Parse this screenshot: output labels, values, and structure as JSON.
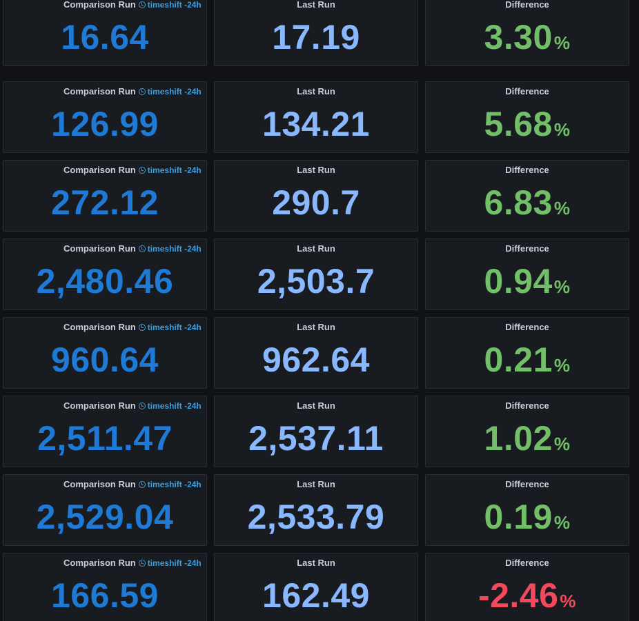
{
  "labels": {
    "comparison": "Comparison Run",
    "timeshift": "timeshift -24h",
    "last": "Last Run",
    "difference": "Difference",
    "percent_unit": "%"
  },
  "colors": {
    "comparison_value": "#1f7ad6",
    "last_value": "#8ab8ff",
    "positive_diff": "#73bf69",
    "negative_diff": "#f2495c",
    "timeshift": "#3d9fe0",
    "panel_bg": "#181b1f",
    "page_bg": "#111217"
  },
  "icons": {
    "timeshift": "clock-icon"
  },
  "rows": [
    {
      "comparison": "16.64",
      "last": "17.19",
      "difference": "3.30",
      "trend": "positive"
    },
    {
      "comparison": "126.99",
      "last": "134.21",
      "difference": "5.68",
      "trend": "positive"
    },
    {
      "comparison": "272.12",
      "last": "290.7",
      "difference": "6.83",
      "trend": "positive"
    },
    {
      "comparison": "2,480.46",
      "last": "2,503.7",
      "difference": "0.94",
      "trend": "positive"
    },
    {
      "comparison": "960.64",
      "last": "962.64",
      "difference": "0.21",
      "trend": "positive"
    },
    {
      "comparison": "2,511.47",
      "last": "2,537.11",
      "difference": "1.02",
      "trend": "positive"
    },
    {
      "comparison": "2,529.04",
      "last": "2,533.79",
      "difference": "0.19",
      "trend": "positive"
    },
    {
      "comparison": "166.59",
      "last": "162.49",
      "difference": "-2.46",
      "trend": "negative"
    }
  ]
}
